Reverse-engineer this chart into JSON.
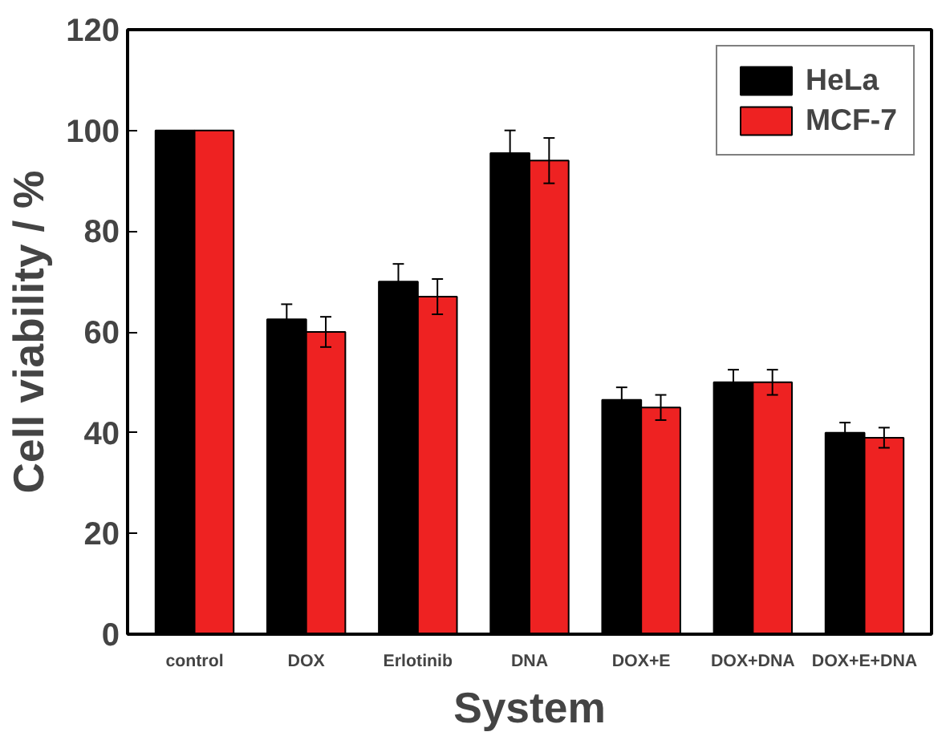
{
  "chart_data": {
    "type": "bar",
    "xlabel": "System",
    "ylabel": "Cell viability / %",
    "categories": [
      "control",
      "DOX",
      "Erlotinib",
      "DNA",
      "DOX+E",
      "DOX+DNA",
      "DOX+E+DNA"
    ],
    "series": [
      {
        "name": "HeLa",
        "color": "#000000",
        "values": [
          100,
          62.5,
          70,
          95.5,
          46.5,
          50,
          40
        ],
        "errors": [
          null,
          3,
          3.5,
          4.5,
          2.5,
          2.5,
          2
        ]
      },
      {
        "name": "MCF-7",
        "color": "#ee2222",
        "values": [
          100,
          60,
          67,
          94,
          45,
          50,
          39
        ],
        "errors": [
          null,
          3,
          3.5,
          4.5,
          2.5,
          2.5,
          2
        ]
      }
    ],
    "ylim": [
      0,
      120
    ],
    "yticks": [
      0,
      20,
      40,
      60,
      80,
      100,
      120
    ],
    "grid": false,
    "legend": "top right"
  }
}
